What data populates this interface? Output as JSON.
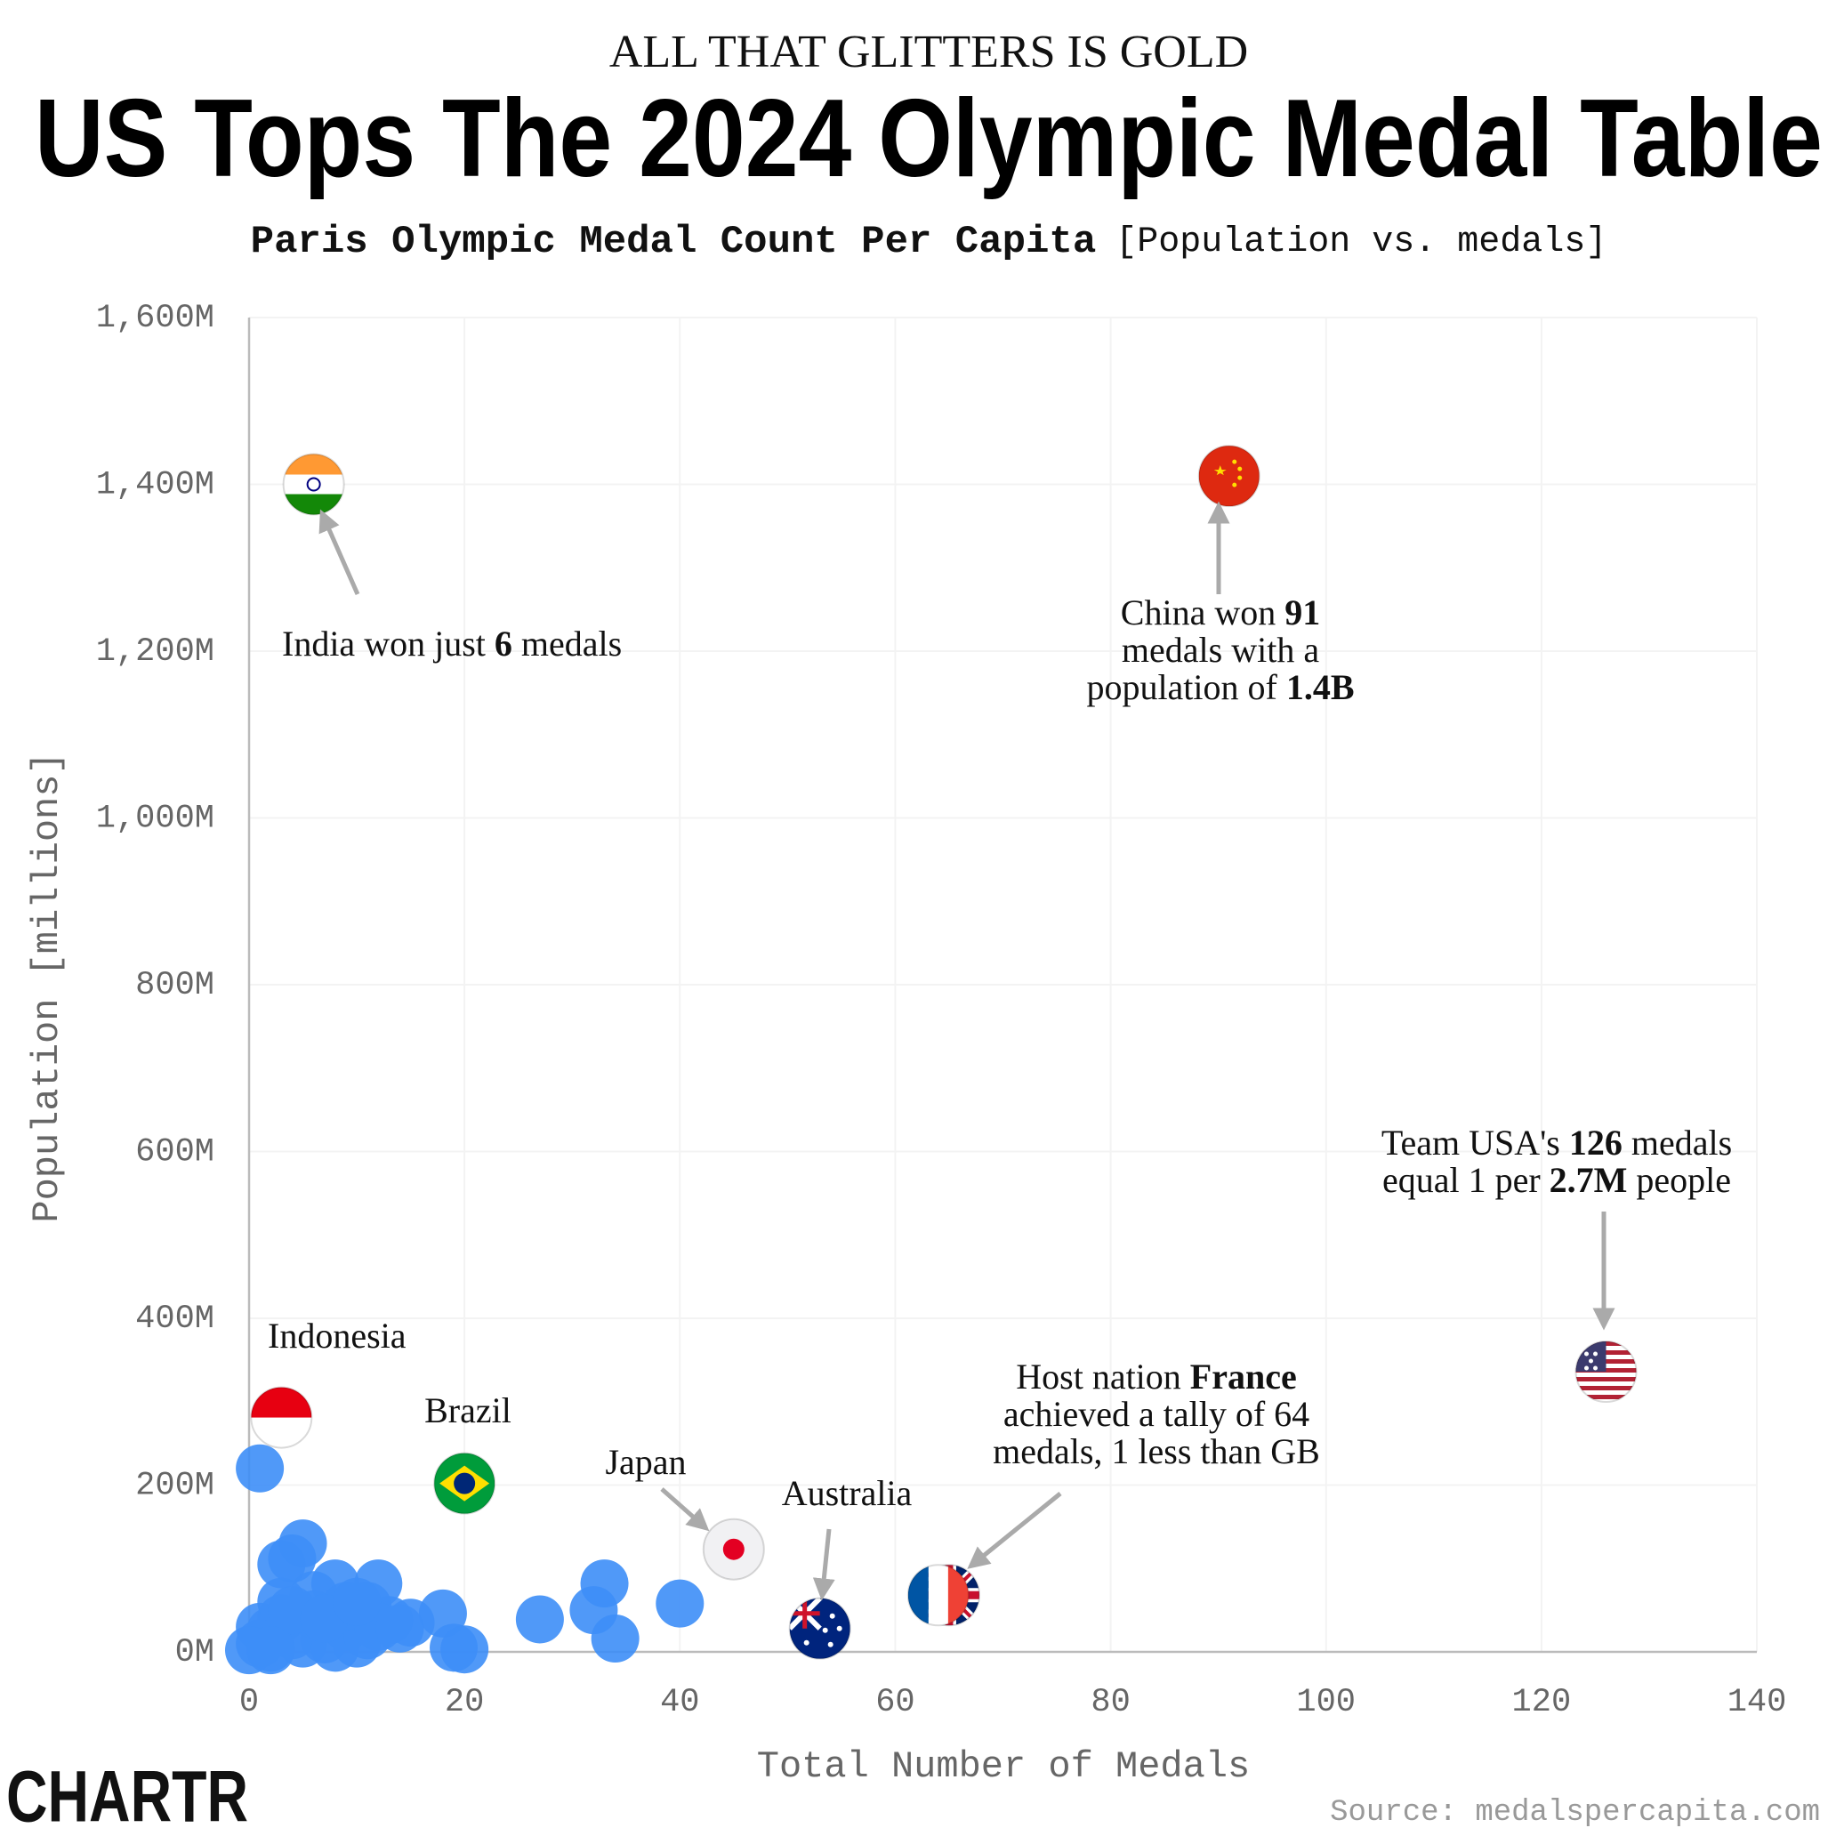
{
  "chart_data": {
    "type": "scatter",
    "kicker": "ALL THAT GLITTERS IS GOLD",
    "title": "US Tops The 2024 Olympic Medal Table",
    "subtitle": "Paris Olympic Medal Count Per Capita",
    "subtitle_note": "[Population vs. medals]",
    "x_label": "Total Number of Medals",
    "y_label": "Population [millions]",
    "source": "Source: medalspercapita.com",
    "logo": "CHARTR",
    "color": "#3d8ef7",
    "grid": true,
    "xlim": [
      0,
      140
    ],
    "xticks": [
      0,
      20,
      40,
      60,
      80,
      100,
      120,
      140
    ],
    "ylim": [
      0,
      1600
    ],
    "yticks": [
      {
        "value": 0,
        "label": "0M"
      },
      {
        "value": 200,
        "label": "200M"
      },
      {
        "value": 400,
        "label": "400M"
      },
      {
        "value": 600,
        "label": "600M"
      },
      {
        "value": 800,
        "label": "800M"
      },
      {
        "value": 1000,
        "label": "1,000M"
      },
      {
        "value": 1200,
        "label": "1,200M"
      },
      {
        "value": 1400,
        "label": "1,400M"
      },
      {
        "value": 1600,
        "label": "1,600M"
      }
    ],
    "x": [
      1,
      5,
      3,
      4,
      8,
      12,
      6,
      11,
      13,
      15,
      18,
      19,
      20,
      27,
      32,
      33,
      34,
      40,
      1,
      2,
      3,
      4,
      5,
      7,
      8,
      9,
      10,
      11,
      2,
      1,
      6,
      9,
      12,
      3,
      4,
      7,
      10,
      14,
      0,
      2
    ],
    "y": [
      220,
      130,
      105,
      112,
      82,
      82,
      68,
      55,
      38,
      35,
      46,
      5,
      3,
      39,
      50,
      82,
      16,
      58,
      30,
      25,
      40,
      20,
      10,
      15,
      5,
      30,
      10,
      20,
      5,
      10,
      45,
      55,
      30,
      60,
      50,
      40,
      60,
      28,
      2,
      2
    ],
    "flagged": {
      "x": [
        6,
        91,
        126,
        3,
        20,
        45,
        53,
        64,
        65
      ],
      "y": [
        1400,
        1410,
        336,
        281,
        202,
        123,
        28,
        68,
        68
      ],
      "flags": [
        "india",
        "china",
        "usa",
        "indonesia",
        "brazil",
        "japan",
        "australia",
        "france",
        "gb"
      ],
      "labels": [
        null,
        null,
        null,
        "Indonesia",
        "Brazil",
        "Japan",
        "Australia",
        null,
        null
      ]
    },
    "annotations": [
      {
        "lines": [
          [
            {
              "text": "India won just "
            },
            {
              "text": "6",
              "bold": true
            },
            {
              "text": " medals"
            }
          ]
        ]
      },
      {
        "lines": [
          [
            {
              "text": "China won "
            },
            {
              "text": "91",
              "bold": true
            }
          ],
          [
            {
              "text": "medals with a"
            }
          ],
          [
            {
              "text": "population of "
            },
            {
              "text": "1.4B",
              "bold": true
            }
          ]
        ]
      },
      {
        "lines": [
          [
            {
              "text": "Team USA's "
            },
            {
              "text": "126",
              "bold": true
            },
            {
              "text": " medals"
            }
          ],
          [
            {
              "text": "equal 1 per "
            },
            {
              "text": "2.7M",
              "bold": true
            },
            {
              "text": " people"
            }
          ]
        ]
      },
      {
        "lines": [
          [
            {
              "text": "Host nation "
            },
            {
              "text": "France",
              "bold": true
            }
          ],
          [
            {
              "text": "achieved a tally of 64"
            }
          ],
          [
            {
              "text": "medals, 1 less than GB"
            }
          ]
        ]
      }
    ]
  }
}
